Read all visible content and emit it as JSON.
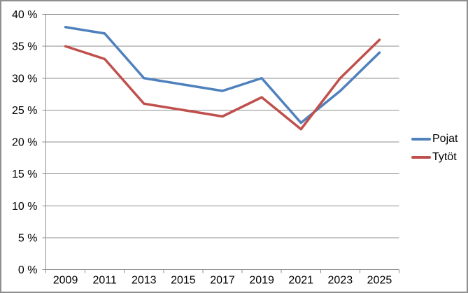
{
  "chart_data": {
    "type": "line",
    "title": "",
    "xlabel": "",
    "ylabel": "",
    "categories": [
      "2009",
      "2011",
      "2013",
      "2015",
      "2017",
      "2019",
      "2021",
      "2023",
      "2025"
    ],
    "series": [
      {
        "name": "Pojat",
        "color": "#4F81BD",
        "values": [
          38,
          37,
          30,
          29,
          28,
          30,
          23,
          28,
          34
        ]
      },
      {
        "name": "Tytöt",
        "color": "#C0504D",
        "values": [
          35,
          33,
          26,
          25,
          24,
          27,
          22,
          30,
          36
        ]
      }
    ],
    "ylim": [
      0,
      40
    ],
    "ytick_step": 5,
    "ytick_labels": [
      "40 %",
      "35 %",
      "30 %",
      "25 %",
      "20 %",
      "15 %",
      "10 %",
      "5 %",
      "0 %"
    ],
    "grid": true,
    "legend_position": "right"
  },
  "colors": {
    "background": "#FFFFFF",
    "border": "#8E8E8E",
    "gridline": "#8C8C8C",
    "axis": "#8C8C8C",
    "text": "#000000",
    "series_pojat": "#4F81BD",
    "series_tytot": "#C0504D"
  }
}
